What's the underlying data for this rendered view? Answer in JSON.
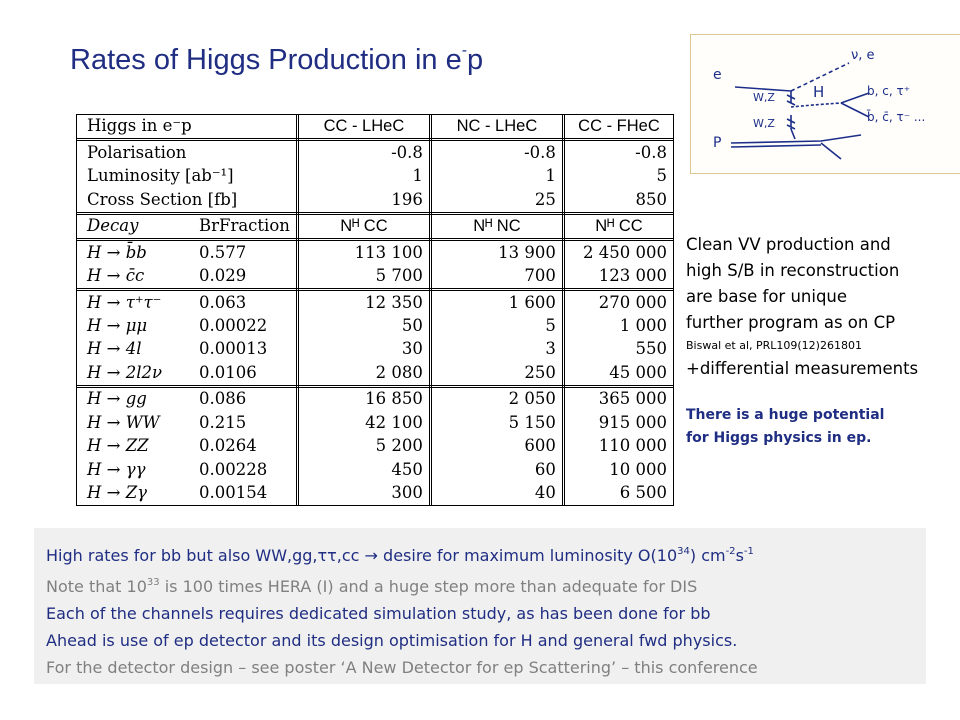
{
  "title": "Rates of Higgs Production in e-p",
  "table": {
    "headers": [
      "Higgs in e⁻p",
      "CC - LHeC",
      "NC - LHeC",
      "CC - FHeC"
    ],
    "params": [
      {
        "label": "Polarisation",
        "values": [
          "-0.8",
          "-0.8",
          "-0.8"
        ]
      },
      {
        "label": "Luminosity [ab⁻¹]",
        "values": [
          "1",
          "1",
          "5"
        ]
      },
      {
        "label": "Cross Section [fb]",
        "values": [
          "196",
          "25",
          "850"
        ]
      }
    ],
    "decay_header": {
      "decay": "Decay",
      "br": "BrFraction",
      "n1": "Nᴴ CC",
      "n2": "Nᴴ NC",
      "n3": "Nᴴ CC"
    },
    "group1": [
      {
        "decay": "H → b̄b",
        "br": "0.577",
        "values": [
          "113 100",
          "13 900",
          "2 450 000"
        ]
      },
      {
        "decay": "H → c̄c",
        "br": "0.029",
        "values": [
          "5 700",
          "700",
          "123 000"
        ]
      }
    ],
    "group2": [
      {
        "decay": "H → τ⁺τ⁻",
        "br": "0.063",
        "values": [
          "12 350",
          "1 600",
          "270 000"
        ]
      },
      {
        "decay": "H → μμ",
        "br": "0.00022",
        "values": [
          "50",
          "5",
          "1 000"
        ]
      },
      {
        "decay": "H → 4l",
        "br": "0.00013",
        "values": [
          "30",
          "3",
          "550"
        ]
      },
      {
        "decay": "H → 2l2ν",
        "br": "0.0106",
        "values": [
          "2 080",
          "250",
          "45 000"
        ]
      }
    ],
    "group3": [
      {
        "decay": "H → gg",
        "br": "0.086",
        "values": [
          "16 850",
          "2 050",
          "365 000"
        ]
      },
      {
        "decay": "H → WW",
        "br": "0.215",
        "values": [
          "42 100",
          "5 150",
          "915 000"
        ]
      },
      {
        "decay": "H → ZZ",
        "br": "0.0264",
        "values": [
          "5 200",
          "600",
          "110 000"
        ]
      },
      {
        "decay": "H → γγ",
        "br": "0.00228",
        "values": [
          "450",
          "60",
          "10 000"
        ]
      },
      {
        "decay": "H → Zγ",
        "br": "0.00154",
        "values": [
          "300",
          "40",
          "6 500"
        ]
      }
    ]
  },
  "diagram": {
    "labels": {
      "e": "e",
      "p": "P",
      "nu_e": "ν, e",
      "w_top": "W,Z",
      "w_bottom": "W,Z",
      "h": "H",
      "out_top": "b, c, τ⁺",
      "out_bottom": "b̄, c̄, τ⁻ ..."
    }
  },
  "side": {
    "lines": [
      "Clean VV production and",
      "high S/B in reconstruction",
      "are base for unique",
      "further program as on CP"
    ],
    "ref": "Biswal et al, PRL109(12)261801",
    "last_line": "+differential measurements",
    "highlight": [
      "There is a huge potential",
      "for Higgs physics in ep."
    ]
  },
  "bottom": {
    "l1a": "High rates for bb but also WW,gg,ττ,cc ",
    "l1arrow": "→",
    "l1b": " desire for maximum luminosity O(10",
    "l1exp1": "34",
    "l1c": ") cm",
    "l1exp2": "-2",
    "l1d": "s",
    "l1exp3": "-1",
    "l2a": "Note that 10",
    "l2exp": "33",
    "l2b": " is 100 times HERA (I) and a huge step more than adequate for DIS",
    "l3": "Each of the channels requires dedicated simulation study, as has been done for bb",
    "l4": "Ahead is use of ep detector and its design optimisation for H and general fwd physics.",
    "l5": "For the detector design – see poster ‘A New Detector for ep Scattering’ – this conference"
  },
  "colors": {
    "title": "#1f2d82",
    "highlight": "#1f2d82",
    "grey": "#808080",
    "bottom_bg": "#f0f0f0"
  }
}
